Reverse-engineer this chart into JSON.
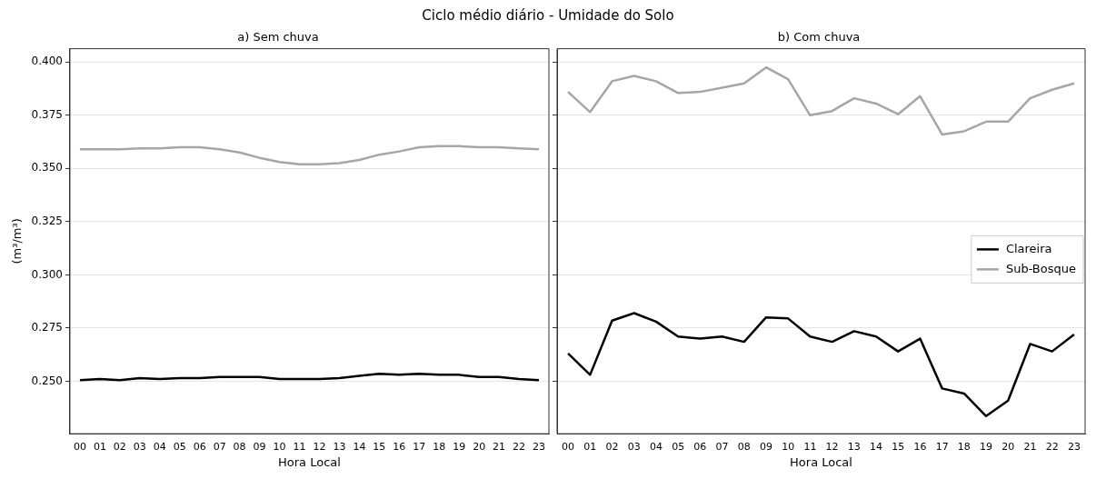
{
  "chart_data": [
    {
      "type": "line",
      "subtitle": "Ciclo médio diário - Umidade do Solo",
      "title": "a) Sem chuva",
      "xlabel": "Hora Local",
      "ylabel": "(m³/m³)",
      "categories": [
        "00",
        "01",
        "02",
        "03",
        "04",
        "05",
        "06",
        "07",
        "08",
        "09",
        "10",
        "11",
        "12",
        "13",
        "14",
        "15",
        "16",
        "17",
        "18",
        "19",
        "20",
        "21",
        "22",
        "23"
      ],
      "ylim": [
        0.2253,
        0.4063
      ],
      "yticks": [
        {
          "value": 0.25,
          "label": "0.250"
        },
        {
          "value": 0.275,
          "label": "0.275"
        },
        {
          "value": 0.3,
          "label": "0.300"
        },
        {
          "value": 0.325,
          "label": "0.325"
        },
        {
          "value": 0.35,
          "label": "0.350"
        },
        {
          "value": 0.375,
          "label": "0.375"
        },
        {
          "value": 0.4,
          "label": "0.400"
        }
      ],
      "grid": "y",
      "marker": "none",
      "series": [
        {
          "color": "#000000",
          "values": [
            0.2505,
            0.251,
            0.2505,
            0.2515,
            0.251,
            0.2515,
            0.2515,
            0.252,
            0.252,
            0.252,
            0.251,
            0.251,
            0.251,
            0.2515,
            0.2525,
            0.2535,
            0.253,
            0.2535,
            0.253,
            0.253,
            0.252,
            0.252,
            0.251,
            0.2505
          ]
        },
        {
          "color": "#a6a6a6",
          "values": [
            0.359,
            0.359,
            0.359,
            0.3595,
            0.3595,
            0.36,
            0.36,
            0.359,
            0.3575,
            0.355,
            0.353,
            0.352,
            0.352,
            0.3525,
            0.354,
            0.3565,
            0.358,
            0.36,
            0.3605,
            0.3605,
            0.36,
            0.36,
            0.3595,
            0.359
          ]
        }
      ]
    },
    {
      "type": "line",
      "title": "b) Com chuva",
      "xlabel": "Hora Local",
      "categories": [
        "00",
        "01",
        "02",
        "03",
        "04",
        "05",
        "06",
        "07",
        "08",
        "09",
        "10",
        "11",
        "12",
        "13",
        "14",
        "15",
        "16",
        "17",
        "18",
        "19",
        "20",
        "21",
        "22",
        "23"
      ],
      "ylim": [
        0.2253,
        0.4063
      ],
      "yticks": [
        {
          "value": 0.25,
          "label": null
        },
        {
          "value": 0.275,
          "label": null
        },
        {
          "value": 0.3,
          "label": null
        },
        {
          "value": 0.325,
          "label": null
        },
        {
          "value": 0.35,
          "label": null
        },
        {
          "value": 0.375,
          "label": null
        },
        {
          "value": 0.4,
          "label": null
        }
      ],
      "tick_labels": "x",
      "grid": "y",
      "marker": "none",
      "legend": "right",
      "series": [
        {
          "name": "Clareira",
          "color": "#000000",
          "values": [
            0.263,
            0.253,
            0.2785,
            0.282,
            0.278,
            0.271,
            0.27,
            0.271,
            0.2685,
            0.28,
            0.2795,
            0.271,
            0.2685,
            0.2735,
            0.271,
            0.264,
            0.27,
            0.2466,
            0.2442,
            0.2336,
            0.2409,
            0.2675,
            0.264,
            0.272
          ]
        },
        {
          "name": "Sub-Bosque",
          "color": "#a6a6a6",
          "values": [
            0.386,
            0.3765,
            0.391,
            0.3935,
            0.391,
            0.3855,
            0.386,
            0.388,
            0.39,
            0.3975,
            0.392,
            0.375,
            0.377,
            0.383,
            0.3805,
            0.3755,
            0.384,
            0.366,
            0.3675,
            0.372,
            0.372,
            0.383,
            0.387,
            0.39
          ]
        }
      ]
    }
  ]
}
